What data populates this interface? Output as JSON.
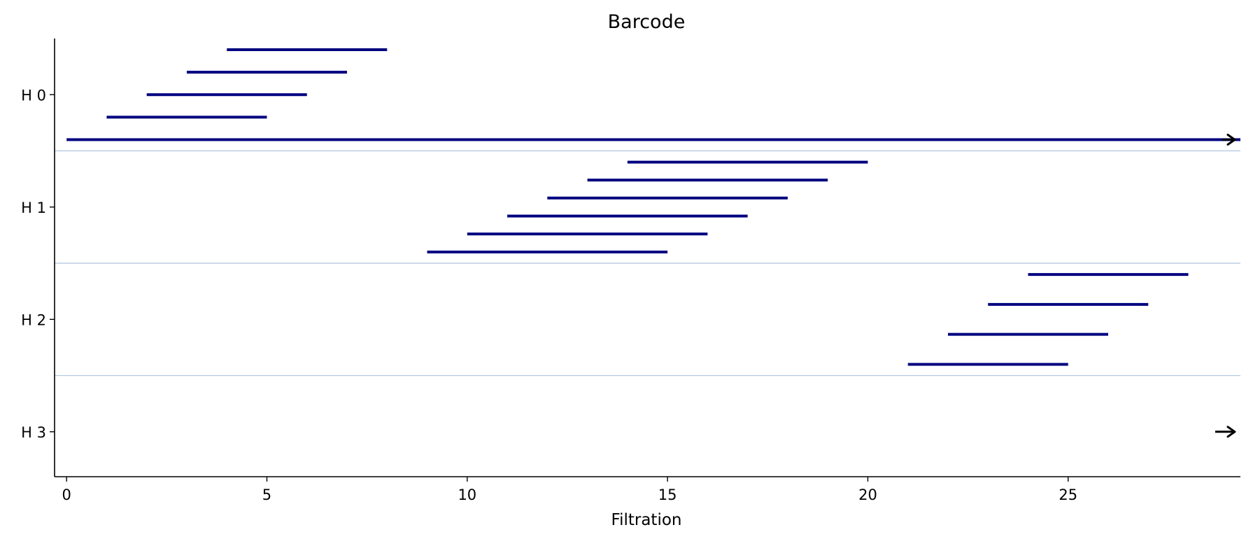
{
  "chart_data": {
    "type": "barcode",
    "title": "Barcode",
    "xlabel": "Filtration",
    "ylabel": "",
    "xlim": [
      -0.3,
      29.3
    ],
    "xticks": [
      0,
      5,
      10,
      15,
      20,
      25
    ],
    "xtick_labels": [
      "0",
      "5",
      "10",
      "15",
      "20",
      "25"
    ],
    "infinity_marker": "arrow",
    "colors": {
      "bar": "#000080",
      "separator": "#b0c4de",
      "arrow": "#000000",
      "axis": "#000000"
    },
    "groups": [
      {
        "label": "H 0",
        "bars": [
          {
            "birth": 0,
            "death": null
          },
          {
            "birth": 1,
            "death": 5
          },
          {
            "birth": 2,
            "death": 6
          },
          {
            "birth": 3,
            "death": 7
          },
          {
            "birth": 4,
            "death": 8
          }
        ]
      },
      {
        "label": "H 1",
        "bars": [
          {
            "birth": 9,
            "death": 15
          },
          {
            "birth": 10,
            "death": 16
          },
          {
            "birth": 11,
            "death": 17
          },
          {
            "birth": 12,
            "death": 18
          },
          {
            "birth": 13,
            "death": 19
          },
          {
            "birth": 14,
            "death": 20
          }
        ]
      },
      {
        "label": "H 2",
        "bars": [
          {
            "birth": 21,
            "death": 25
          },
          {
            "birth": 22,
            "death": 26
          },
          {
            "birth": 23,
            "death": 27
          },
          {
            "birth": 24,
            "death": 28
          }
        ]
      },
      {
        "label": "H 3",
        "bars": [
          {
            "birth": 29.3,
            "death": null
          }
        ]
      }
    ]
  }
}
